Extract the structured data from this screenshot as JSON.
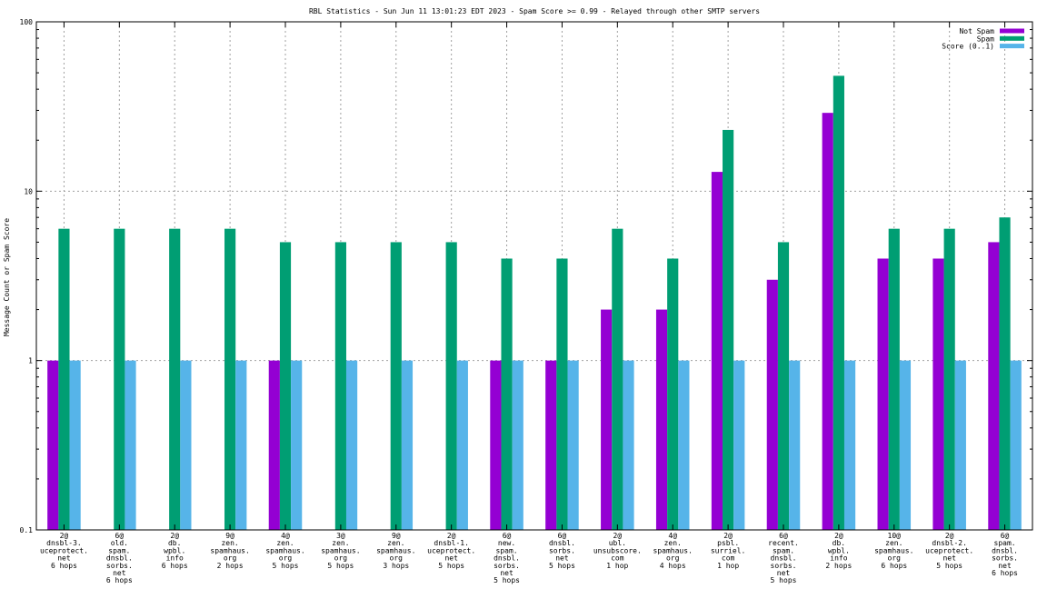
{
  "chart_data": {
    "type": "bar",
    "title": "RBL Statistics - Sun Jun 11 13:01:23 EDT 2023 - Spam Score >= 0.99 - Relayed through other SMTP servers",
    "xlabel": "",
    "ylabel": "Message Count or Spam Score",
    "yscale": "log",
    "ylim": [
      0.1,
      100
    ],
    "yticks": [
      "0.1",
      "1",
      "10",
      "100"
    ],
    "grid": true,
    "legend_position": "top-right",
    "categories": [
      [
        "2@",
        "dnsbl-3.",
        "uceprotect.",
        "net",
        "6 hops"
      ],
      [
        "6@",
        "old.",
        "spam.",
        "dnsbl.",
        "sorbs.",
        "net",
        "6 hops"
      ],
      [
        "2@",
        "db.",
        "wpbl.",
        "info",
        "6 hops"
      ],
      [
        "9@",
        "zen.",
        "spamhaus.",
        "org",
        "2 hops"
      ],
      [
        "4@",
        "zen.",
        "spamhaus.",
        "org",
        "5 hops"
      ],
      [
        "3@",
        "zen.",
        "spamhaus.",
        "org",
        "5 hops"
      ],
      [
        "9@",
        "zen.",
        "spamhaus.",
        "org",
        "3 hops"
      ],
      [
        "2@",
        "dnsbl-1.",
        "uceprotect.",
        "net",
        "5 hops"
      ],
      [
        "6@",
        "new.",
        "spam.",
        "dnsbl.",
        "sorbs.",
        "net",
        "5 hops"
      ],
      [
        "6@",
        "dnsbl.",
        "sorbs.",
        "net",
        "5 hops"
      ],
      [
        "2@",
        "ubl.",
        "unsubscore.",
        "com",
        "1 hop"
      ],
      [
        "4@",
        "zen.",
        "spamhaus.",
        "org",
        "4 hops"
      ],
      [
        "2@",
        "psbl.",
        "surriel.",
        "com",
        "1 hop"
      ],
      [
        "6@",
        "recent.",
        "spam.",
        "dnsbl.",
        "sorbs.",
        "net",
        "5 hops"
      ],
      [
        "2@",
        "db.",
        "wpbl.",
        "info",
        "2 hops"
      ],
      [
        "10@",
        "zen.",
        "spamhaus.",
        "org",
        "6 hops"
      ],
      [
        "2@",
        "dnsbl-2.",
        "uceprotect.",
        "net",
        "5 hops"
      ],
      [
        "6@",
        "spam.",
        "dnsbl.",
        "sorbs.",
        "net",
        "6 hops"
      ]
    ],
    "series": [
      {
        "name": "Not Spam",
        "color": "#9400d3",
        "values": [
          1,
          null,
          null,
          null,
          1,
          null,
          null,
          null,
          1,
          1,
          2,
          2,
          13,
          3,
          29,
          4,
          4,
          5
        ]
      },
      {
        "name": "Spam",
        "color": "#009e73",
        "values": [
          6,
          6,
          6,
          6,
          5,
          5,
          5,
          5,
          4,
          4,
          6,
          4,
          23,
          5,
          48,
          6,
          6,
          7
        ]
      },
      {
        "name": "Score (0..1)",
        "color": "#56b4e9",
        "values": [
          1,
          1,
          1,
          1,
          1,
          1,
          1,
          1,
          1,
          1,
          1,
          1,
          1,
          1,
          1,
          1,
          1,
          1
        ]
      }
    ]
  }
}
